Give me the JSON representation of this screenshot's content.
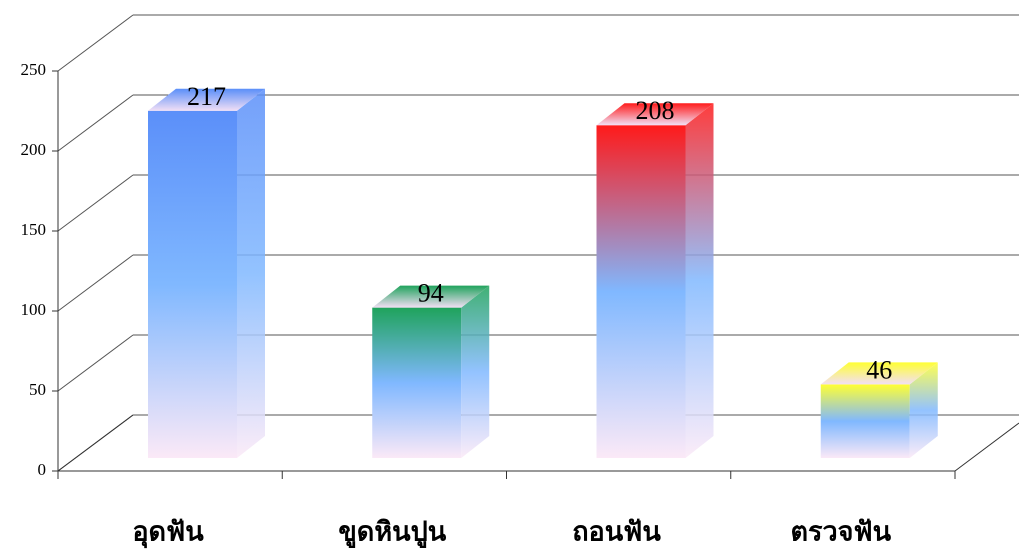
{
  "chart_data": {
    "type": "bar3d",
    "categories": [
      "อุดฟัน",
      "ขูดหินปูน",
      "ถอนฟัน",
      "ตรวจฟัน"
    ],
    "values": [
      217,
      94,
      208,
      46
    ],
    "colors": [
      "#5b8ff9",
      "#1fa35c",
      "#ff1a1a",
      "#ffff33"
    ],
    "ylim": [
      0,
      250
    ],
    "yticks": [
      0,
      50,
      100,
      150,
      200,
      250
    ],
    "grid": true
  }
}
